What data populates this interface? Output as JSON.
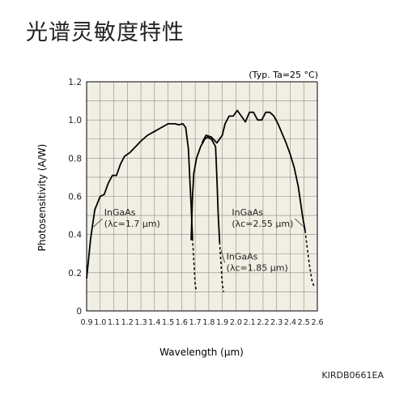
{
  "page": {
    "title": "光谱灵敏度特性",
    "doc_code": "KIRDB0661EA"
  },
  "chart_data": {
    "type": "line",
    "title": "",
    "condition_note": "(Typ. Ta=25 °C)",
    "xlabel": "Wavelength (μm)",
    "ylabel": "Photosensitivity (A/W)",
    "xlim": [
      0.9,
      2.6
    ],
    "ylim": [
      0,
      1.2
    ],
    "x_ticks": [
      0.9,
      1.0,
      1.1,
      1.2,
      1.3,
      1.4,
      1.5,
      1.6,
      1.7,
      1.8,
      1.9,
      2.0,
      2.1,
      2.2,
      2.3,
      2.4,
      2.5,
      2.6
    ],
    "x_tick_labels": [
      "0.9",
      "1.0",
      "1.1",
      "1.2",
      "1.3",
      "1.4",
      "1.5",
      "1.6",
      "1.7",
      "1.8",
      "1.9",
      "2.0",
      "2.1",
      "2.2",
      "2.3",
      "2.4",
      "2.5",
      "2.6"
    ],
    "y_ticks": [
      0,
      0.2,
      0.4,
      0.6,
      0.8,
      1.0,
      1.2
    ],
    "y_tick_labels": [
      "0",
      "0.2",
      "0.4",
      "0.6",
      "0.8",
      "1.0",
      "1.2"
    ],
    "grid": true,
    "background_color": "#f1efe3",
    "grid_color": "#8a8a8a",
    "line_color": "#000000",
    "series": [
      {
        "name": "InGaAs (λc=1.7 μm)",
        "points": [
          [
            0.9,
            0.17
          ],
          [
            0.93,
            0.38
          ],
          [
            0.96,
            0.53
          ],
          [
            1.0,
            0.6
          ],
          [
            1.03,
            0.61
          ],
          [
            1.06,
            0.67
          ],
          [
            1.09,
            0.71
          ],
          [
            1.12,
            0.71
          ],
          [
            1.15,
            0.77
          ],
          [
            1.18,
            0.81
          ],
          [
            1.22,
            0.83
          ],
          [
            1.26,
            0.86
          ],
          [
            1.3,
            0.89
          ],
          [
            1.35,
            0.92
          ],
          [
            1.4,
            0.94
          ],
          [
            1.45,
            0.96
          ],
          [
            1.5,
            0.98
          ],
          [
            1.55,
            0.98
          ],
          [
            1.58,
            0.975
          ],
          [
            1.61,
            0.98
          ],
          [
            1.63,
            0.96
          ],
          [
            1.65,
            0.85
          ],
          [
            1.66,
            0.7
          ],
          [
            1.67,
            0.55
          ],
          [
            1.68,
            0.38
          ]
        ],
        "dashed_tail": [
          [
            1.68,
            0.38
          ],
          [
            1.7,
            0.14
          ],
          [
            1.71,
            0.1
          ]
        ]
      },
      {
        "name": "InGaAs (λc=1.85 μm)",
        "points": [
          [
            1.67,
            0.37
          ],
          [
            1.68,
            0.6
          ],
          [
            1.69,
            0.72
          ],
          [
            1.71,
            0.8
          ],
          [
            1.74,
            0.86
          ],
          [
            1.77,
            0.9
          ],
          [
            1.79,
            0.91
          ],
          [
            1.82,
            0.9
          ],
          [
            1.85,
            0.86
          ],
          [
            1.86,
            0.7
          ],
          [
            1.87,
            0.5
          ],
          [
            1.88,
            0.36
          ]
        ],
        "dashed_tail": [
          [
            1.88,
            0.36
          ],
          [
            1.9,
            0.14
          ],
          [
            1.91,
            0.1
          ]
        ]
      },
      {
        "name": "InGaAs (λc=2.55 μm)",
        "points": [
          [
            1.75,
            0.88
          ],
          [
            1.78,
            0.92
          ],
          [
            1.82,
            0.91
          ],
          [
            1.86,
            0.88
          ],
          [
            1.9,
            0.92
          ],
          [
            1.92,
            0.98
          ],
          [
            1.95,
            1.02
          ],
          [
            1.98,
            1.02
          ],
          [
            2.01,
            1.05
          ],
          [
            2.04,
            1.02
          ],
          [
            2.07,
            0.99
          ],
          [
            2.1,
            1.04
          ],
          [
            2.13,
            1.04
          ],
          [
            2.16,
            1.0
          ],
          [
            2.19,
            1.0
          ],
          [
            2.22,
            1.04
          ],
          [
            2.25,
            1.04
          ],
          [
            2.28,
            1.02
          ],
          [
            2.31,
            0.98
          ],
          [
            2.34,
            0.93
          ],
          [
            2.37,
            0.88
          ],
          [
            2.4,
            0.82
          ],
          [
            2.43,
            0.75
          ],
          [
            2.46,
            0.65
          ],
          [
            2.49,
            0.5
          ],
          [
            2.51,
            0.42
          ]
        ],
        "dashed_tail": [
          [
            2.51,
            0.42
          ],
          [
            2.54,
            0.25
          ],
          [
            2.56,
            0.16
          ],
          [
            2.58,
            0.12
          ]
        ]
      }
    ],
    "annotations": [
      {
        "id": "ann-17",
        "line1": "InGaAs",
        "line2": "(λc=1.7 μm)",
        "x": 1.03,
        "y": 0.5,
        "arrow_to": [
          0.95,
          0.44
        ]
      },
      {
        "id": "ann-255",
        "line1": "InGaAs",
        "line2": "(λc=2.55 μm)",
        "x": 1.97,
        "y": 0.5,
        "arrow_to": [
          2.5,
          0.44
        ]
      },
      {
        "id": "ann-185",
        "line1": "InGaAs",
        "line2": "(λc=1.85 μm)",
        "x": 1.93,
        "y": 0.27,
        "arrow_to": [
          1.89,
          0.32
        ]
      }
    ]
  }
}
